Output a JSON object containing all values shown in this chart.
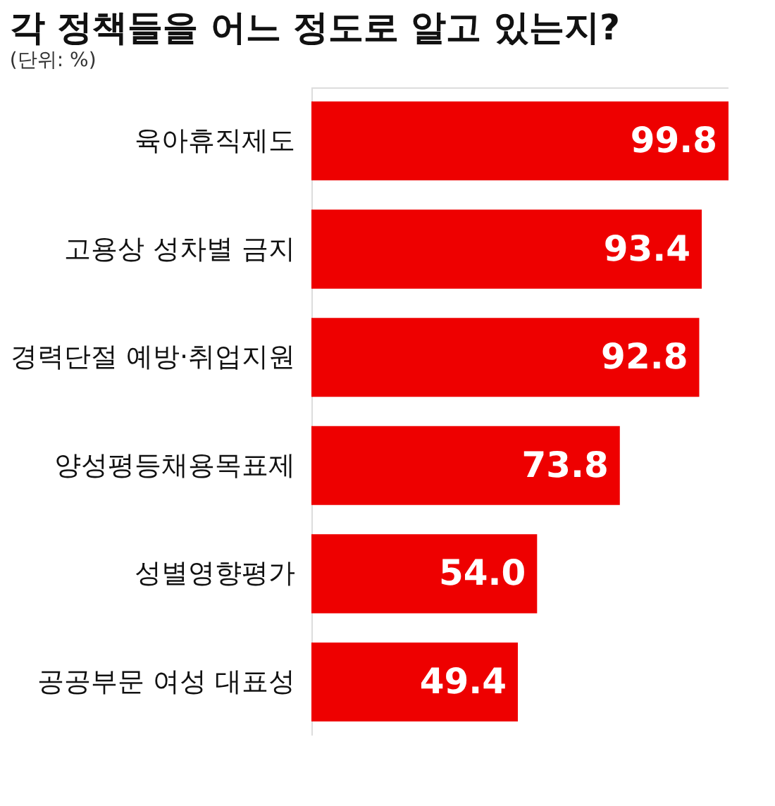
{
  "chart_data": {
    "type": "bar",
    "orientation": "horizontal",
    "title": "각 정책들을 어느 정도로 알고 있는지?",
    "subtitle": "(단위: %)",
    "categories": [
      "육아휴직제도",
      "고용상 성차별 금지",
      "경력단절 예방·취업지원",
      "양성평등채용목표제",
      "성별영향평가",
      "공공부문 여성 대표성"
    ],
    "values": [
      99.8,
      93.4,
      92.8,
      73.8,
      54.0,
      49.4
    ],
    "value_labels": [
      "99.8",
      "93.4",
      "92.8",
      "73.8",
      "54.0",
      "49.4"
    ],
    "color": "#ee0000",
    "grid": false
  }
}
